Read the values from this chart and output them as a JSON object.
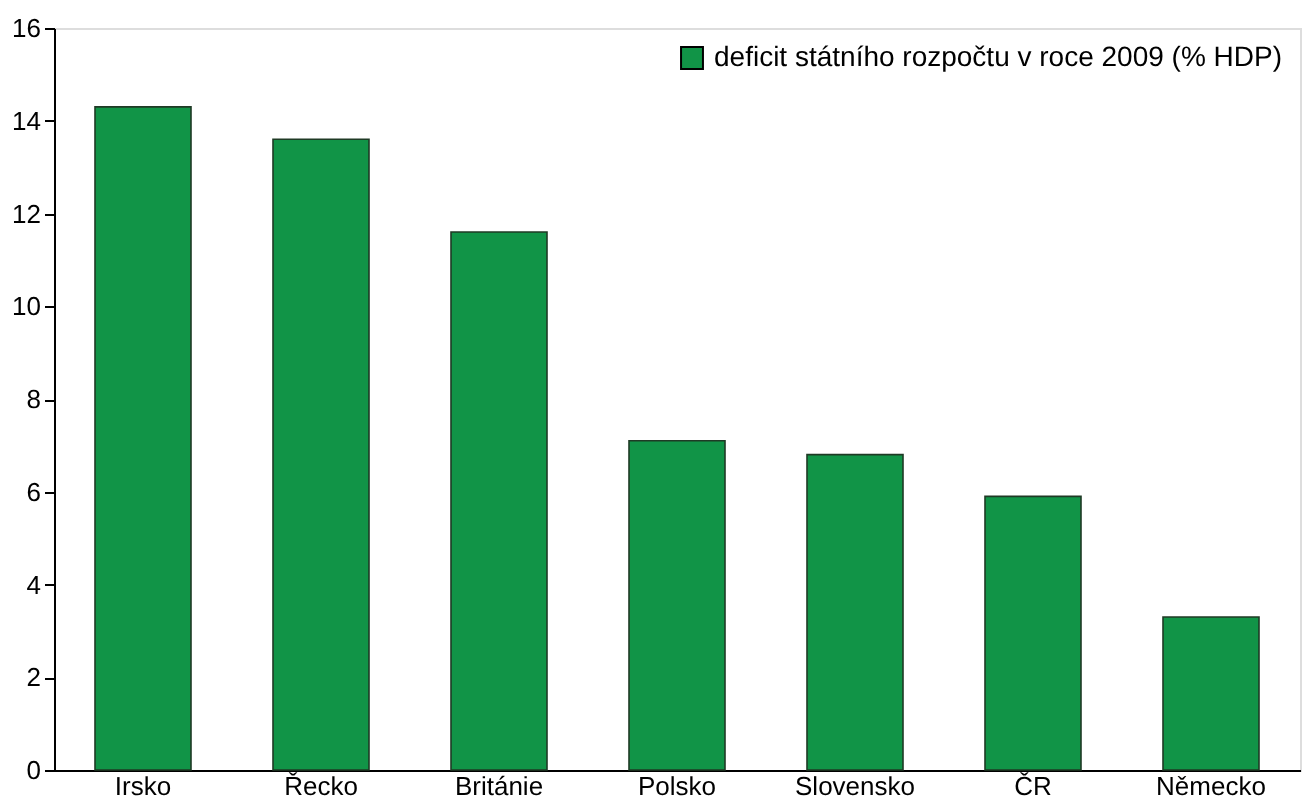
{
  "chart_data": {
    "type": "bar",
    "categories": [
      "Irsko",
      "Řecko",
      "Británie",
      "Polsko",
      "Slovensko",
      "ČR",
      "Německo"
    ],
    "series": [
      {
        "name": "deficit státního rozpočtu v roce 2009 (% HDP)",
        "color": "#119447",
        "values": [
          14.3,
          13.6,
          11.6,
          7.1,
          6.8,
          5.9,
          3.3
        ]
      }
    ],
    "ylim": [
      0,
      16
    ],
    "yticks": [
      0,
      2,
      4,
      6,
      8,
      10,
      12,
      14,
      16
    ],
    "grid": false,
    "legend": "top right"
  }
}
